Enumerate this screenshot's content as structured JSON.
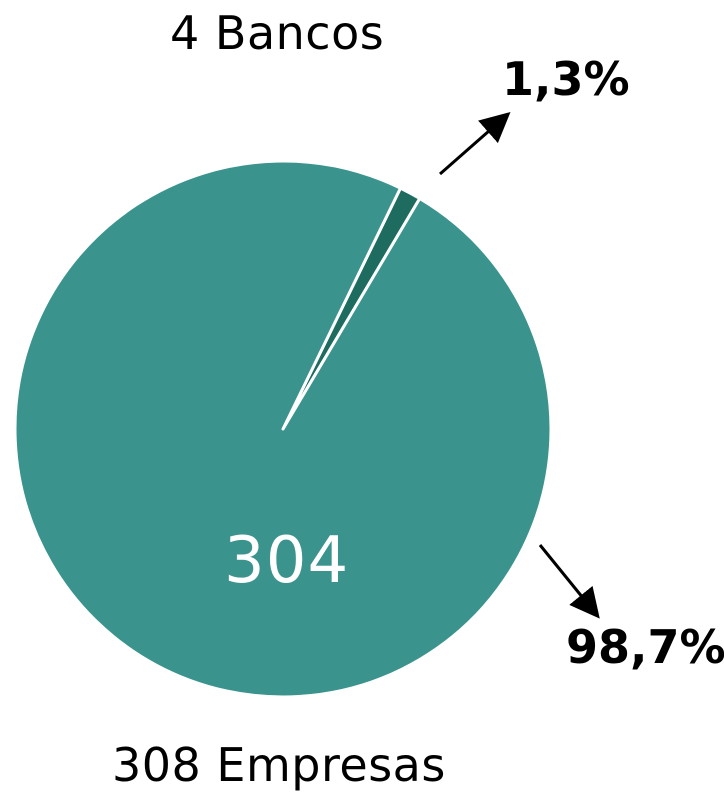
{
  "labels": {
    "top": "4 Bancos",
    "bottom": "308 Empresas",
    "center_value": "304",
    "small_pct": "1,3%",
    "large_pct": "98,7%"
  },
  "colors": {
    "main": "#3a948d",
    "small": "#1e6c60",
    "text": "#000000",
    "center_text": "#ffffff"
  },
  "chart_data": {
    "type": "pie",
    "categories": [
      "Bancos",
      "Empresas"
    ],
    "values": [
      4,
      304
    ],
    "total": 308,
    "percent_labels": [
      "1,3%",
      "98,7%"
    ],
    "total_label": "308 Empresas",
    "legend": "none"
  }
}
